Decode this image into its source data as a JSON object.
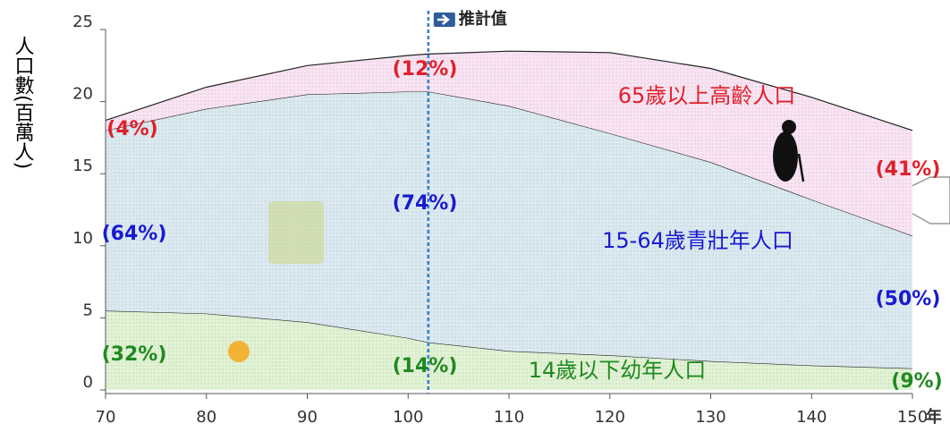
{
  "chart_data": {
    "type": "area",
    "stacked": true,
    "ylabel": "人口數(百萬人)",
    "xlabel": "年",
    "x": [
      70,
      80,
      90,
      100,
      102,
      110,
      120,
      130,
      140,
      150
    ],
    "xlim": [
      70,
      150
    ],
    "ylim": [
      0,
      25
    ],
    "xticks": [
      70,
      80,
      90,
      100,
      110,
      120,
      130,
      140,
      150
    ],
    "yticks": [
      0,
      5,
      10,
      15,
      20,
      25
    ],
    "projection": {
      "x": 102,
      "label": "推計值"
    },
    "series": [
      {
        "name": "14歲以下幼年人口",
        "color": "#e2f3d3",
        "label_color": "#1f8a1f",
        "values": [
          5.5,
          5.3,
          4.7,
          3.6,
          3.3,
          2.7,
          2.4,
          2.0,
          1.7,
          1.5
        ],
        "percent_labels": [
          "(32%)",
          "(14%)",
          "(9%)"
        ]
      },
      {
        "name": "15-64歲青壯年人口",
        "color": "#dbe9f0",
        "label_color": "#1a1ad0",
        "values": [
          12.5,
          14.2,
          15.8,
          17.1,
          17.4,
          17.0,
          15.4,
          13.8,
          11.5,
          9.2
        ],
        "percent_labels": [
          "(64%)",
          "(74%)",
          "(50%)"
        ]
      },
      {
        "name": "65歲以上高齡人口",
        "color": "#fbe3f3",
        "label_color": "#e0202a",
        "values": [
          0.7,
          1.5,
          2.0,
          2.5,
          2.6,
          3.8,
          5.6,
          6.5,
          7.1,
          7.3
        ],
        "percent_labels": [
          "(4%)",
          "(12%)",
          "(41%)"
        ]
      }
    ]
  }
}
